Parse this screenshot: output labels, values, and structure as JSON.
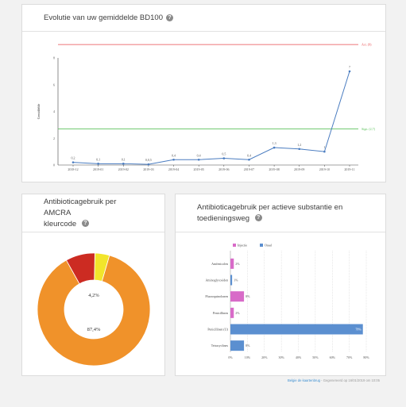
{
  "header": {
    "title": "Evolutie van uw gemiddelde BD100"
  },
  "amcra_card": {
    "title_line1": "Antibioticagebruik per AMCRA",
    "title_line2": "kleurcode"
  },
  "substance_card": {
    "title_line1": "Antibioticagebruik per actieve substantie en",
    "title_line2": "toedieningsweg"
  },
  "footer": {
    "link_text": "Belgie de kaartenbrug",
    "text": " - Gegenereerd op 16/01/2019 om 10:05"
  },
  "colors": {
    "line": "#4a7cc0",
    "actie": "#e8484c",
    "signaal": "#5dc35d",
    "orange": "#f0922a",
    "red": "#cc2b22",
    "yellow": "#f2e52b",
    "injectie": "#d86bc8",
    "oraal": "#5b8fd0"
  },
  "chart_data": [
    {
      "type": "line",
      "title": "",
      "xlabel": "",
      "ylabel": "Gemiddelde",
      "ylim": [
        0,
        8
      ],
      "yticks": [
        "0",
        "2",
        "4",
        "6",
        "8"
      ],
      "categories": [
        "2018-12",
        "2019-01",
        "2019-02",
        "2019-03",
        "2019-04",
        "2019-05",
        "2019-06",
        "2019-07",
        "2019-08",
        "2019-09",
        "2019-10",
        "2019-11"
      ],
      "series": [
        {
          "name": "",
          "values": [
            0.2,
            0.1,
            0.1,
            0.05,
            0.4,
            0.4,
            0.5,
            0.4,
            1.3,
            1.2,
            1,
            7
          ]
        }
      ],
      "point_labels": [
        "0,2",
        "0,1",
        "0,1",
        "0,0,5",
        "0,4",
        "0,4",
        "0,5",
        "0,4",
        "1,3",
        "1,2",
        "1",
        "7"
      ],
      "reference_lines": [
        {
          "label": "Act. (9)",
          "value": 9,
          "color": "#e8484c"
        },
        {
          "label": "Sign. (2,7)",
          "value": 2.7,
          "color": "#5dc35d"
        }
      ],
      "grid": false
    },
    {
      "type": "pie",
      "title": "Antibioticagebruik per AMCRA kleurcode",
      "slices": [
        {
          "name": "orange",
          "value": 87.4,
          "color": "#f0922a",
          "label": "87,4%"
        },
        {
          "name": "red",
          "value": 8.4,
          "color": "#cc2b22",
          "label": ""
        },
        {
          "name": "yellow",
          "value": 4.2,
          "color": "#f2e52b",
          "label": "4,2%"
        }
      ]
    },
    {
      "type": "bar",
      "orientation": "horizontal",
      "title": "Antibioticagebruik per actieve substantie en toedieningsweg",
      "legend": [
        "Injectie",
        "Oraal"
      ],
      "legend_placement": "top",
      "categories": [
        "Amfenicolen",
        "Aminoglycosiden",
        "Fluoroquinolonen",
        "Penicillinen",
        "Penicillinen (U)",
        "Tetracyclines"
      ],
      "series": [
        {
          "name": "Injectie",
          "values": [
            2,
            0,
            8,
            2,
            0,
            0
          ]
        },
        {
          "name": "Oraal",
          "values": [
            0,
            1,
            0,
            0,
            78,
            8
          ]
        }
      ],
      "bar_labels": [
        "2%",
        "1%",
        "8%",
        "2%",
        "78%",
        "8%"
      ],
      "xlim": [
        0,
        80
      ],
      "xticks": [
        "0%",
        "10%",
        "20%",
        "30%",
        "40%",
        "50%",
        "60%",
        "70%",
        "80%"
      ]
    }
  ]
}
